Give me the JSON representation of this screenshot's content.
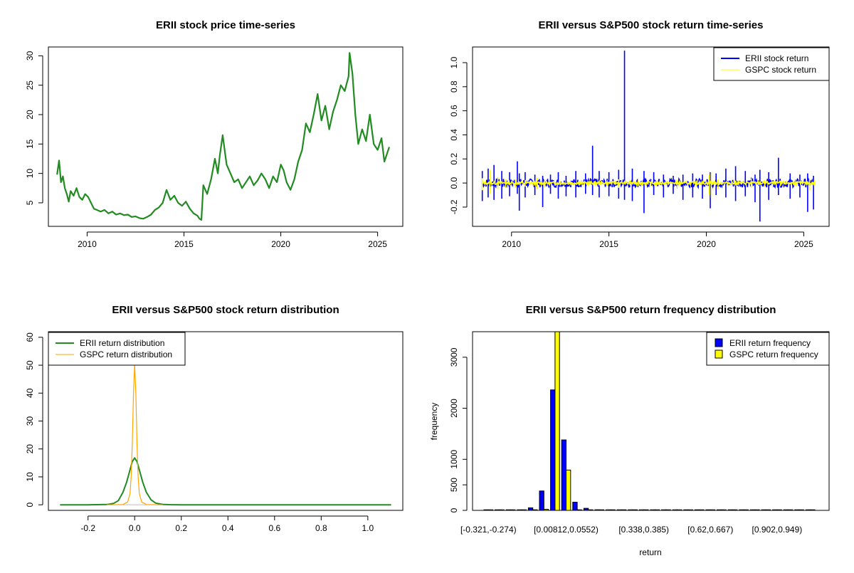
{
  "colors": {
    "price": "#228B22",
    "erii_ret": "#0000FF",
    "gspc_ret": "#FFFF00",
    "erii_dist": "#228B22",
    "gspc_dist": "#FFA500",
    "axis": "#000000",
    "background": "#FFFFFF"
  },
  "chart_data": [
    {
      "id": "p1",
      "type": "line",
      "title": "ERII stock price time-series",
      "xlabel": "",
      "ylabel": "",
      "xlim": [
        2008.0,
        2026.3
      ],
      "ylim": [
        1.0,
        31.5
      ],
      "xticks": [
        2010,
        2015,
        2020,
        2025
      ],
      "xtick_labels": [
        "2010",
        "2015",
        "2020",
        "2025"
      ],
      "yticks": [
        5,
        10,
        15,
        20,
        25,
        30
      ],
      "ytick_labels": [
        "5",
        "10",
        "15",
        "20",
        "25",
        "30"
      ],
      "series": [
        {
          "name": "ERII price",
          "color_key": "price",
          "x": [
            2008.45,
            2008.55,
            2008.65,
            2008.75,
            2008.85,
            2008.95,
            2009.05,
            2009.15,
            2009.3,
            2009.45,
            2009.6,
            2009.75,
            2009.9,
            2010.05,
            2010.2,
            2010.35,
            2010.5,
            2010.7,
            2010.9,
            2011.1,
            2011.3,
            2011.5,
            2011.7,
            2011.9,
            2012.1,
            2012.3,
            2012.5,
            2012.7,
            2012.9,
            2013.1,
            2013.3,
            2013.5,
            2013.7,
            2013.9,
            2014.1,
            2014.3,
            2014.5,
            2014.7,
            2014.9,
            2015.1,
            2015.3,
            2015.5,
            2015.7,
            2015.8,
            2015.9,
            2016.0,
            2016.2,
            2016.4,
            2016.6,
            2016.75,
            2016.85,
            2017.0,
            2017.2,
            2017.4,
            2017.6,
            2017.8,
            2018.0,
            2018.2,
            2018.4,
            2018.6,
            2018.8,
            2019.0,
            2019.2,
            2019.4,
            2019.6,
            2019.8,
            2020.0,
            2020.15,
            2020.3,
            2020.5,
            2020.7,
            2020.9,
            2021.1,
            2021.3,
            2021.5,
            2021.7,
            2021.9,
            2022.1,
            2022.3,
            2022.5,
            2022.7,
            2022.9,
            2023.1,
            2023.3,
            2023.5,
            2023.55,
            2023.7,
            2023.85,
            2024.0,
            2024.2,
            2024.4,
            2024.6,
            2024.8,
            2025.0,
            2025.2,
            2025.35,
            2025.5,
            2025.6
          ],
          "values": [
            9.8,
            12.2,
            8.5,
            9.5,
            7.5,
            6.5,
            5.2,
            7.0,
            6.2,
            7.5,
            6.0,
            5.5,
            6.5,
            6.0,
            5.0,
            4.0,
            3.8,
            3.5,
            3.8,
            3.2,
            3.5,
            3.0,
            3.2,
            2.9,
            3.0,
            2.6,
            2.7,
            2.4,
            2.3,
            2.6,
            3.0,
            3.8,
            4.2,
            5.0,
            7.2,
            5.5,
            6.2,
            5.0,
            4.5,
            5.2,
            4.0,
            3.2,
            2.8,
            2.3,
            2.1,
            8.0,
            6.5,
            9.0,
            12.5,
            10.0,
            13.0,
            16.5,
            11.5,
            10.0,
            8.5,
            9.0,
            7.5,
            8.5,
            9.5,
            8.0,
            8.8,
            10.0,
            9.0,
            7.5,
            9.5,
            8.5,
            11.5,
            10.5,
            8.5,
            7.2,
            9.0,
            12.0,
            14.0,
            18.5,
            17.0,
            20.0,
            23.5,
            19.0,
            21.5,
            17.5,
            20.5,
            22.5,
            25.0,
            24.0,
            26.5,
            30.5,
            27.0,
            20.0,
            15.0,
            17.5,
            15.5,
            20.0,
            15.0,
            14.0,
            16.0,
            12.0,
            13.5,
            14.5
          ]
        }
      ]
    },
    {
      "id": "p2",
      "type": "line",
      "title": "ERII versus S&P500 stock return time-series",
      "xlabel": "",
      "ylabel": "",
      "xlim": [
        2008.0,
        2026.3
      ],
      "ylim": [
        -0.36,
        1.13
      ],
      "xticks": [
        2010,
        2015,
        2020,
        2025
      ],
      "xtick_labels": [
        "2010",
        "2015",
        "2020",
        "2025"
      ],
      "yticks": [
        -0.2,
        0.0,
        0.2,
        0.4,
        0.6,
        0.8,
        1.0
      ],
      "ytick_labels": [
        "-0.2",
        "0.0",
        "0.2",
        "0.4",
        "0.6",
        "0.8",
        "1.0"
      ],
      "legend": {
        "placement": "top-right",
        "entries": [
          "ERII stock return",
          "GSPC stock return"
        ]
      },
      "series": [
        {
          "name": "ERII stock return",
          "color_key": "erii_ret",
          "x": [
            2008.5,
            2008.8,
            2009.1,
            2009.5,
            2009.9,
            2010.3,
            2010.4,
            2010.7,
            2011.2,
            2011.6,
            2012.0,
            2012.4,
            2012.8,
            2013.3,
            2013.8,
            2014.16,
            2014.5,
            2015.0,
            2015.5,
            2015.8,
            2016.2,
            2016.8,
            2017.3,
            2017.8,
            2018.3,
            2018.8,
            2019.3,
            2019.8,
            2020.2,
            2020.5,
            2021.0,
            2021.5,
            2022.0,
            2022.5,
            2022.75,
            2023.2,
            2023.7,
            2024.3,
            2024.8,
            2025.2,
            2025.5
          ],
          "high": [
            0.1,
            0.12,
            0.15,
            0.1,
            0.09,
            0.18,
            0.08,
            0.09,
            0.07,
            0.06,
            0.07,
            0.09,
            0.06,
            0.1,
            0.08,
            0.31,
            0.1,
            0.09,
            0.11,
            1.1,
            0.12,
            0.1,
            0.09,
            0.07,
            0.06,
            0.07,
            0.08,
            0.07,
            0.09,
            0.08,
            0.12,
            0.14,
            0.1,
            0.07,
            0.11,
            0.09,
            0.21,
            0.08,
            0.07,
            0.08,
            0.06
          ],
          "low": [
            -0.15,
            -0.12,
            -0.14,
            -0.13,
            -0.11,
            -0.09,
            -0.23,
            -0.12,
            -0.1,
            -0.2,
            -0.09,
            -0.13,
            -0.11,
            -0.12,
            -0.09,
            -0.1,
            -0.12,
            -0.11,
            -0.13,
            -0.14,
            -0.15,
            -0.25,
            -0.1,
            -0.12,
            -0.09,
            -0.14,
            -0.12,
            -0.13,
            -0.21,
            -0.1,
            -0.12,
            -0.15,
            -0.11,
            -0.16,
            -0.32,
            -0.14,
            -0.1,
            -0.13,
            -0.12,
            -0.24,
            -0.22
          ]
        },
        {
          "name": "GSPC stock return",
          "color_key": "gspc_ret",
          "x": [
            2008.5,
            2008.9,
            2009.3,
            2009.7,
            2010.2,
            2010.7,
            2011.3,
            2011.7,
            2012.5,
            2013.5,
            2014.5,
            2015.5,
            2016.5,
            2017.5,
            2018.5,
            2019.5,
            2020.15,
            2020.25,
            2020.6,
            2021.5,
            2022.3,
            2023.0,
            2023.8,
            2024.5,
            2025.3,
            2025.55
          ],
          "high": [
            0.04,
            0.11,
            0.05,
            0.03,
            0.03,
            0.025,
            0.045,
            0.03,
            0.02,
            0.015,
            0.015,
            0.03,
            0.02,
            0.01,
            0.03,
            0.02,
            0.07,
            0.09,
            0.03,
            0.02,
            0.035,
            0.025,
            0.02,
            0.02,
            0.03,
            0.02
          ],
          "low": [
            -0.06,
            -0.09,
            -0.05,
            -0.04,
            -0.04,
            -0.03,
            -0.05,
            -0.035,
            -0.02,
            -0.02,
            -0.02,
            -0.04,
            -0.025,
            -0.015,
            -0.04,
            -0.03,
            -0.1,
            -0.12,
            -0.05,
            -0.02,
            -0.04,
            -0.03,
            -0.025,
            -0.02,
            -0.06,
            -0.02
          ]
        }
      ]
    },
    {
      "id": "p3",
      "type": "line",
      "title": "ERII versus S&P500 stock return distribution",
      "xlabel": "",
      "ylabel": "",
      "xlim": [
        -0.37,
        1.15
      ],
      "ylim": [
        -2.0,
        62.0
      ],
      "xticks": [
        -0.2,
        0.0,
        0.2,
        0.4,
        0.6,
        0.8,
        1.0
      ],
      "xtick_labels": [
        "-0.2",
        "0.0",
        "0.2",
        "0.4",
        "0.6",
        "0.8",
        "1.0"
      ],
      "yticks": [
        0,
        10,
        20,
        30,
        40,
        50,
        60
      ],
      "ytick_labels": [
        "0",
        "10",
        "20",
        "30",
        "40",
        "50",
        "60"
      ],
      "legend": {
        "placement": "top-left",
        "entries": [
          "ERII return distribution",
          "GSPC return distribution"
        ]
      },
      "series": [
        {
          "name": "ERII return distribution",
          "color_key": "erii_dist",
          "x": [
            -0.32,
            -0.2,
            -0.12,
            -0.09,
            -0.07,
            -0.05,
            -0.035,
            -0.02,
            -0.01,
            0.0,
            0.01,
            0.02,
            0.035,
            0.05,
            0.07,
            0.09,
            0.12,
            0.15,
            0.2,
            0.4,
            0.6,
            0.8,
            1.1
          ],
          "values": [
            0,
            0,
            0.1,
            0.5,
            1.5,
            4.5,
            8.0,
            12.5,
            15.5,
            16.8,
            15.5,
            12.5,
            8.0,
            4.5,
            1.8,
            0.6,
            0.15,
            0.05,
            0,
            0,
            0,
            0,
            0
          ]
        },
        {
          "name": "GSPC return distribution",
          "color_key": "gspc_dist",
          "x": [
            -0.12,
            -0.05,
            -0.03,
            -0.02,
            -0.015,
            -0.01,
            -0.005,
            0.0,
            0.005,
            0.01,
            0.015,
            0.02,
            0.03,
            0.05,
            0.12
          ],
          "values": [
            0,
            0.1,
            1.0,
            4.0,
            10.0,
            22.0,
            40.0,
            50.5,
            40.0,
            22.0,
            10.0,
            4.0,
            1.0,
            0.1,
            0
          ]
        }
      ]
    },
    {
      "id": "p4",
      "type": "bar",
      "title": "ERII versus S&P500 return frequency distribution",
      "xlabel": "return",
      "ylabel": "frequency",
      "ylim": [
        0,
        3500
      ],
      "yticks": [
        0,
        500,
        1000,
        2000,
        3000
      ],
      "ytick_labels": [
        "0",
        "500",
        "1000",
        "2000",
        "3000"
      ],
      "x_labels": [
        {
          "bin_index": 0,
          "label": "[-0.321,-0.274)"
        },
        {
          "bin_index": 7,
          "label": "[0.00812,0.0552)"
        },
        {
          "bin_index": 14,
          "label": "[0.338,0.385)"
        },
        {
          "bin_index": 20,
          "label": "[0.62,0.667)"
        },
        {
          "bin_index": 26,
          "label": "[0.902,0.949)"
        }
      ],
      "legend": {
        "placement": "top-right",
        "entries": [
          "ERII return frequency",
          "GSPC return frequency"
        ]
      },
      "bin_count": 30,
      "series": [
        {
          "name": "ERII return frequency",
          "color_key": "erii_ret",
          "values": [
            1,
            1,
            2,
            5,
            50,
            380,
            2360,
            1380,
            160,
            40,
            12,
            4,
            2,
            1,
            1,
            0,
            0,
            0,
            0,
            0,
            0,
            0,
            0,
            0,
            0,
            0,
            0,
            0,
            0,
            1
          ]
        },
        {
          "name": "GSPC return frequency",
          "color_key": "gspc_ret",
          "values": [
            0,
            0,
            0,
            0,
            1,
            20,
            3500,
            790,
            5,
            0,
            0,
            0,
            0,
            0,
            0,
            0,
            0,
            0,
            0,
            0,
            0,
            0,
            0,
            0,
            0,
            0,
            0,
            0,
            0,
            0
          ]
        }
      ]
    }
  ]
}
